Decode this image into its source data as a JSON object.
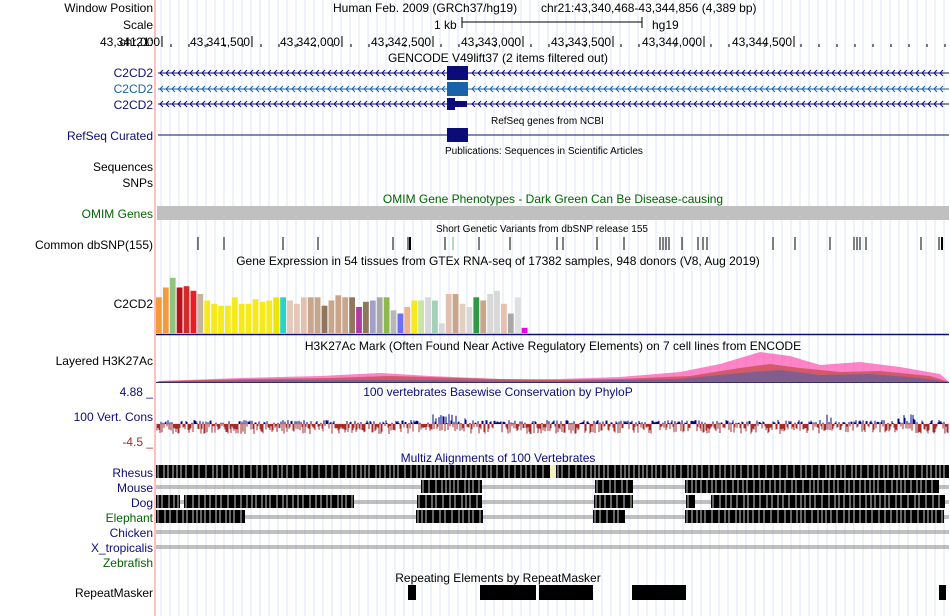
{
  "header": {
    "window_position_label": "Window Position",
    "assembly": "Human Feb. 2009 (GRCh37/hg19)",
    "position": "chr21:43,340,468-43,344,856 (4,389 bp)",
    "scale_label": "Scale",
    "scale_value": "1 kb",
    "scale_db": "hg19",
    "chrom_label": "chr21:",
    "ruler_ticks": [
      "43,341,000",
      "43,341,500",
      "43,342,000",
      "43,342,500",
      "43,343,000",
      "43,343,500",
      "43,344,000",
      "43,344,500"
    ]
  },
  "tracks": {
    "gencode": {
      "title": "GENCODE V49lift37 (2 items filtered out)",
      "items": [
        "C2CD2",
        "C2CD2",
        "C2CD2"
      ]
    },
    "refseq": {
      "label": "RefSeq Curated",
      "title": "RefSeq genes from NCBI"
    },
    "publications": {
      "label": "Sequences",
      "title": "Publications: Sequences in Scientific Articles"
    },
    "snps_label": "SNPs",
    "omim": {
      "label": "OMIM Genes",
      "title": "OMIM Gene Phenotypes - Dark Green Can Be Disease-causing"
    },
    "dbsnp": {
      "label": "Common dbSNP(155)",
      "title": "Short Genetic Variants from dbSNP release 155"
    },
    "gtex": {
      "label": "C2CD2",
      "title": "Gene Expression in 54 tissues from GTEx RNA-seq of 17382 samples, 948 donors (V8, Aug 2019)"
    },
    "h3k27ac": {
      "label": "Layered H3K27Ac",
      "title": "H3K27Ac Mark (Often Found Near Active Regulatory Elements) on 7 cell lines from ENCODE"
    },
    "cons": {
      "label": "100 Vert. Cons",
      "title": "100 vertebrates Basewise Conservation by PhyloP",
      "max": "4.88 _",
      "min": "-4.5 _"
    },
    "multiz": {
      "title": "Multiz Alignments of 100 Vertebrates",
      "species": [
        "Rhesus",
        "Mouse",
        "Dog",
        "Elephant",
        "Chicken",
        "X_tropicalis",
        "Zebrafish"
      ]
    },
    "repeatmasker": {
      "label": "RepeatMasker",
      "title": "Repeating Elements by RepeatMasker"
    }
  },
  "colors": {
    "navy": "#0c0c78",
    "blue_mid": "#1a62a8",
    "omim_grey": "#c0c0c0",
    "omim_green": "#006400",
    "cons_neg": "#a52a2a",
    "cons_pos": "#00008b",
    "red_line": "#ff8080"
  },
  "gtex_values": [
    0.55,
    0.7,
    0.85,
    0.7,
    0.72,
    0.65,
    0.6,
    0.5,
    0.45,
    0.42,
    0.42,
    0.55,
    0.45,
    0.45,
    0.52,
    0.48,
    0.5,
    0.55,
    0.55,
    0.5,
    0.45,
    0.55,
    0.55,
    0.55,
    0.42,
    0.5,
    0.58,
    0.55,
    0.55,
    0.4,
    0.48,
    0.5,
    0.55,
    0.55,
    0.35,
    0.3,
    0.4,
    0.5,
    0.5,
    0.55,
    0.5,
    0.15,
    0.6,
    0.6,
    0.45,
    0.4,
    0.55,
    0.5,
    0.6,
    0.65,
    0.45,
    0.3,
    0.55,
    0.08
  ]
}
